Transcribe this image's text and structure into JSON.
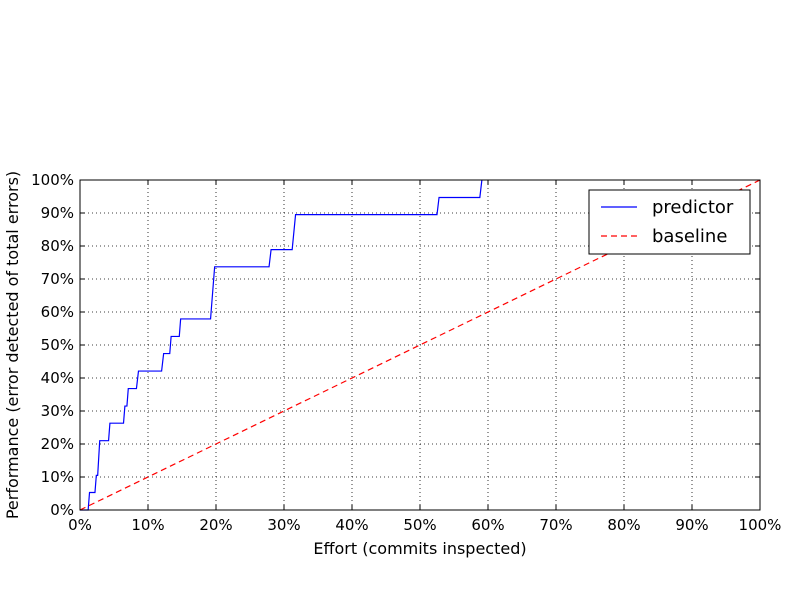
{
  "chart_data": {
    "type": "line",
    "title": "",
    "xlabel": "Effort (commits inspected)",
    "ylabel": "Performance (error detected of total errors)",
    "xlim": [
      0,
      100
    ],
    "ylim": [
      0,
      100
    ],
    "x_ticks": [
      "0%",
      "10%",
      "20%",
      "30%",
      "40%",
      "50%",
      "60%",
      "70%",
      "80%",
      "90%",
      "100%"
    ],
    "y_ticks": [
      "0%",
      "10%",
      "20%",
      "30%",
      "40%",
      "50%",
      "60%",
      "70%",
      "80%",
      "90%",
      "100%"
    ],
    "grid": true,
    "legend_position": "top-right",
    "series": [
      {
        "name": "predictor",
        "color": "#0000ff",
        "style": "solid",
        "points": [
          [
            0,
            0
          ],
          [
            1.2,
            0
          ],
          [
            1.4,
            5.3
          ],
          [
            2.2,
            5.3
          ],
          [
            2.4,
            10.5
          ],
          [
            2.6,
            10.5
          ],
          [
            2.9,
            21
          ],
          [
            4.2,
            21
          ],
          [
            4.4,
            26.3
          ],
          [
            6.4,
            26.3
          ],
          [
            6.6,
            31.5
          ],
          [
            6.9,
            31.5
          ],
          [
            7.1,
            36.8
          ],
          [
            8.3,
            36.8
          ],
          [
            8.6,
            42.1
          ],
          [
            12,
            42.1
          ],
          [
            12.3,
            47.4
          ],
          [
            13.2,
            47.4
          ],
          [
            13.4,
            52.6
          ],
          [
            14.6,
            52.6
          ],
          [
            14.8,
            57.9
          ],
          [
            19.2,
            57.9
          ],
          [
            19.8,
            73.7
          ],
          [
            27.8,
            73.7
          ],
          [
            28.1,
            78.9
          ],
          [
            31.2,
            78.9
          ],
          [
            31.7,
            89.5
          ],
          [
            52.5,
            89.5
          ],
          [
            52.8,
            94.7
          ],
          [
            58.8,
            94.7
          ],
          [
            59.1,
            100
          ]
        ]
      },
      {
        "name": "baseline",
        "color": "#ff0000",
        "style": "dashed",
        "points": [
          [
            0,
            0
          ],
          [
            100,
            100
          ]
        ]
      }
    ]
  }
}
